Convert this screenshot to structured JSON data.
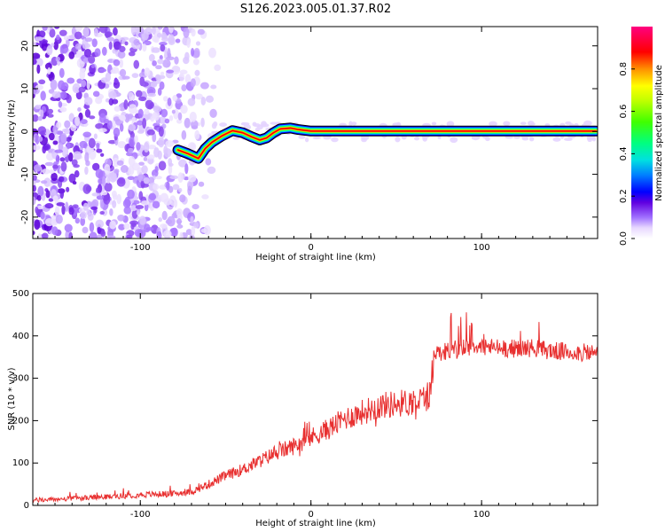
{
  "title": "S126.2023.005.01.37.R02",
  "charts": [
    {
      "id": "spectrogram",
      "type": "heatmap",
      "xlabel": "Height of straight line (km)",
      "ylabel": "Frequency (Hz)",
      "xlim": [
        -163,
        168
      ],
      "ylim": [
        -25,
        24.5
      ],
      "xticks": [
        -100,
        0,
        100
      ],
      "yticks": [
        -20,
        -10,
        0,
        10,
        20
      ],
      "colorbar": {
        "label": "Normalized spectral amplitude",
        "range": [
          0.0,
          1.0
        ],
        "ticks": [
          "0.0",
          "0.2",
          "0.4",
          "0.6",
          "0.8"
        ],
        "colormap": [
          "#f0e8ff",
          "#b080ff",
          "#6000e0",
          "#0000ff",
          "#00c0ff",
          "#00ff80",
          "#80ff00",
          "#ffff00",
          "#ff8000",
          "#ff0000",
          "#ff0080"
        ]
      },
      "noise_region_x": [
        -163,
        -58
      ],
      "signal_track": [
        [
          -78,
          -4.3
        ],
        [
          -72,
          -5.2
        ],
        [
          -66,
          -6.3
        ],
        [
          -62,
          -4.0
        ],
        [
          -58,
          -2.5
        ],
        [
          -52,
          -1.0
        ],
        [
          -46,
          0.2
        ],
        [
          -40,
          -0.3
        ],
        [
          -35,
          -1.2
        ],
        [
          -30,
          -2.0
        ],
        [
          -26,
          -1.5
        ],
        [
          -22,
          -0.3
        ],
        [
          -18,
          0.6
        ],
        [
          -12,
          0.8
        ],
        [
          -8,
          0.5
        ],
        [
          0,
          0.1
        ],
        [
          20,
          0.1
        ],
        [
          60,
          0.1
        ],
        [
          100,
          0.1
        ],
        [
          140,
          0.1
        ],
        [
          167,
          0.1
        ]
      ]
    },
    {
      "id": "snr",
      "type": "line",
      "xlabel": "Height of straight line (km)",
      "ylabel": "SNR (10 * v/v)",
      "xlim": [
        -163,
        168
      ],
      "ylim": [
        0,
        500
      ],
      "xticks": [
        -100,
        0,
        100
      ],
      "yticks": [
        0,
        100,
        200,
        300,
        400,
        500
      ],
      "color": "#e83030",
      "trend": [
        [
          -163,
          12
        ],
        [
          -140,
          16
        ],
        [
          -120,
          20
        ],
        [
          -100,
          25
        ],
        [
          -80,
          28
        ],
        [
          -70,
          32
        ],
        [
          -60,
          50
        ],
        [
          -50,
          70
        ],
        [
          -40,
          85
        ],
        [
          -30,
          105
        ],
        [
          -20,
          125
        ],
        [
          -10,
          140
        ],
        [
          0,
          160
        ],
        [
          10,
          180
        ],
        [
          20,
          205
        ],
        [
          30,
          220
        ],
        [
          40,
          235
        ],
        [
          50,
          240
        ],
        [
          60,
          245
        ],
        [
          65,
          250
        ],
        [
          70,
          262
        ],
        [
          72,
          360
        ],
        [
          80,
          365
        ],
        [
          90,
          370
        ],
        [
          100,
          375
        ],
        [
          110,
          372
        ],
        [
          120,
          370
        ],
        [
          130,
          372
        ],
        [
          140,
          365
        ],
        [
          150,
          362
        ],
        [
          160,
          360
        ],
        [
          168,
          360
        ]
      ]
    }
  ]
}
